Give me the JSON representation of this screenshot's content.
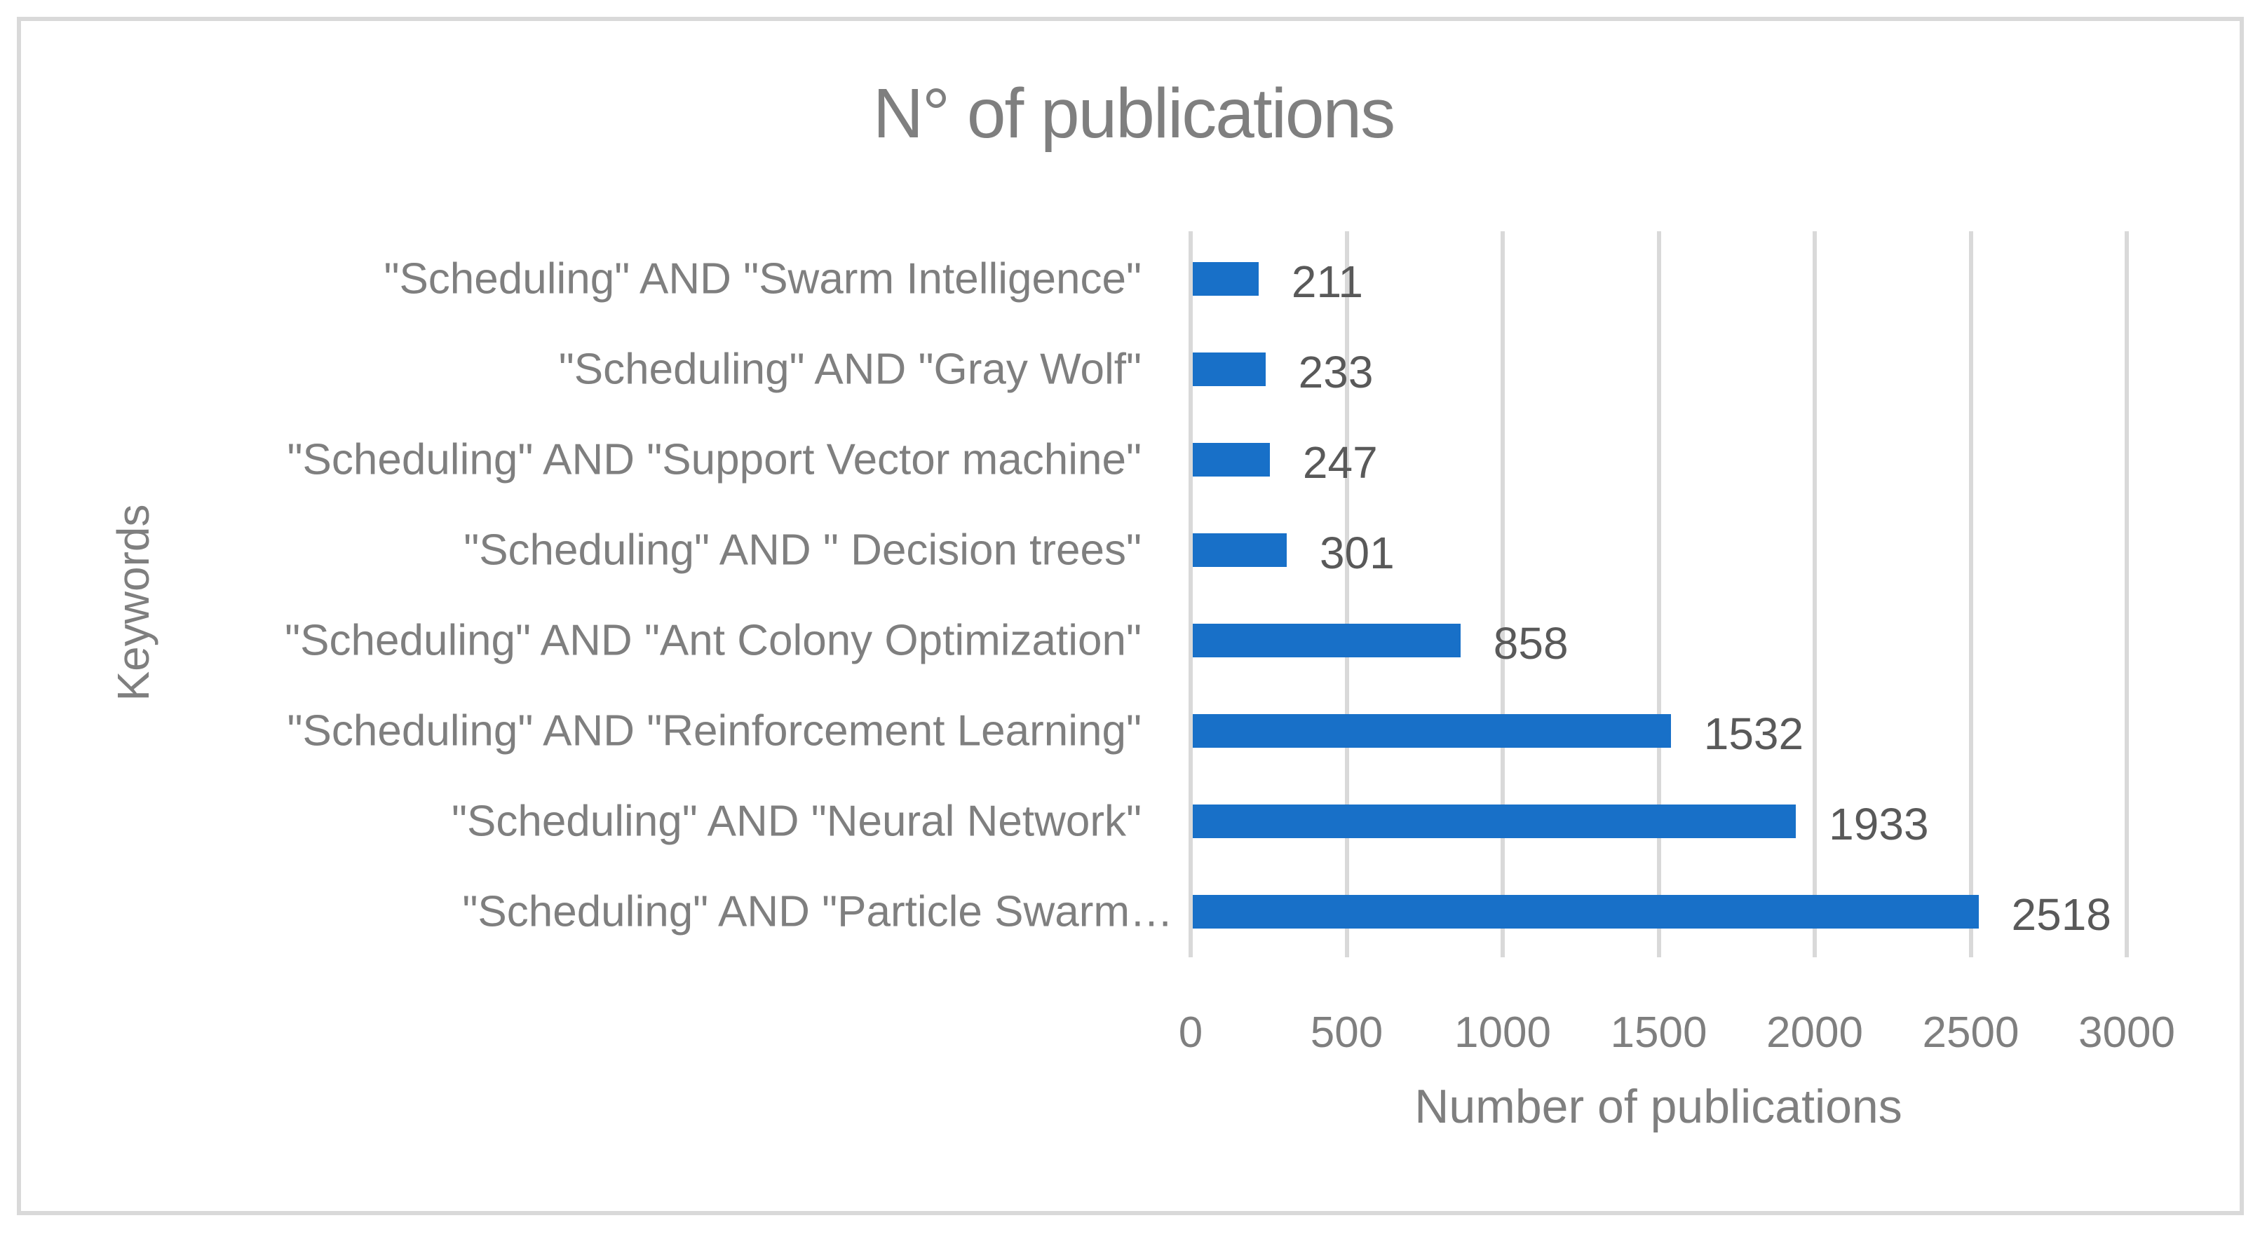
{
  "chart_data": {
    "type": "bar",
    "orientation": "horizontal",
    "title": "N° of publications",
    "xlabel": "Number of publications",
    "ylabel": "Keywords",
    "xlim": [
      0,
      3000
    ],
    "xticks": [
      "0",
      "500",
      "1000",
      "1500",
      "2000",
      "2500",
      "3000"
    ],
    "grid": "vertical",
    "legend": "none",
    "bar_color": "#1870c8",
    "categories": [
      "\"Scheduling\" AND \"Swarm Intelligence\"",
      "\"Scheduling\" AND \"Gray Wolf\"",
      "\"Scheduling\" AND \"Support Vector machine\"",
      "\"Scheduling\" AND \" Decision trees\"",
      "\"Scheduling\" AND \"Ant Colony Optimization\"",
      "\"Scheduling\" AND \"Reinforcement Learning\"",
      "\"Scheduling\" AND \"Neural Network\"",
      "\"Scheduling\" AND \"Particle Swarm…"
    ],
    "values": [
      211,
      233,
      247,
      301,
      858,
      1532,
      1933,
      2518
    ],
    "data_labels": [
      "211",
      "233",
      "247",
      "301",
      "858",
      "1532",
      "1933",
      "2518"
    ]
  }
}
